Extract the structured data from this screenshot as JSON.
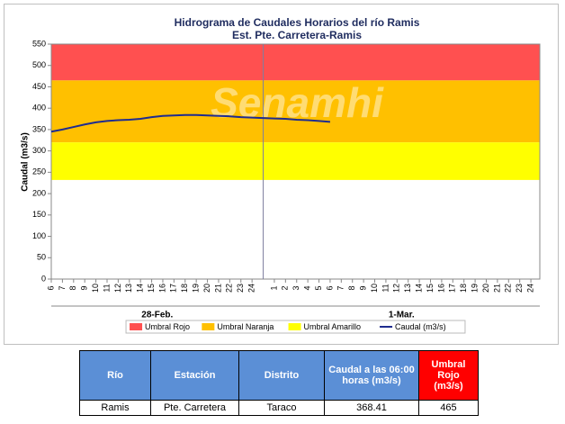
{
  "chart_data": {
    "type": "line",
    "title": "Hidrograma de Caudales Horarios del río Ramis",
    "subtitle": "Est. Pte. Carretera-Ramis",
    "y_label": "Caudal  (m3/s)",
    "watermark": "Senamhi",
    "categories": [
      "6",
      "7",
      "8",
      "9",
      "10",
      "11",
      "12",
      "13",
      "14",
      "15",
      "16",
      "17",
      "18",
      "19",
      "20",
      "21",
      "22",
      "23",
      "24",
      null,
      "1",
      "2",
      "3",
      "4",
      "5",
      "6",
      "7",
      "8",
      "9",
      "10",
      "11",
      "12",
      "13",
      "14",
      "15",
      "16",
      "17",
      "18",
      "19",
      "20",
      "21",
      "22",
      "23",
      "24"
    ],
    "date_labels": [
      "28-Feb.",
      "1-Mar."
    ],
    "bands": [
      {
        "name": "Umbral Rojo",
        "color": "#ff5050",
        "from": 465,
        "to": 550
      },
      {
        "name": "Umbral Naranja",
        "color": "#ffc000",
        "from": 320,
        "to": 465
      },
      {
        "name": "Umbral Amarillo",
        "color": "#ffff00",
        "from": 232,
        "to": 320
      }
    ],
    "series": [
      {
        "name": "Caudal (m3/s)",
        "color": "#1f2c8f",
        "values": [
          345,
          350,
          356,
          362,
          367,
          370,
          372,
          373,
          375,
          379,
          382,
          383,
          384,
          384,
          383,
          382,
          381,
          379,
          378,
          377,
          376,
          375,
          373,
          372,
          370,
          368,
          null,
          null,
          null,
          null,
          null,
          null,
          null,
          null,
          null,
          null,
          null,
          null,
          null,
          null,
          null,
          null,
          null,
          null
        ]
      }
    ],
    "ylim": [
      0,
      550
    ],
    "yticks": [
      0,
      50,
      100,
      150,
      200,
      250,
      300,
      350,
      400,
      450,
      500,
      550
    ]
  },
  "table": {
    "header": [
      "Río",
      "Estación",
      "Distrito",
      "Caudal a las 06:00 horas (m3/s)",
      "Umbral Rojo (m3/s)"
    ],
    "rows": [
      [
        "Ramis",
        "Pte. Carretera",
        "Taraco",
        368.41,
        465
      ]
    ]
  }
}
